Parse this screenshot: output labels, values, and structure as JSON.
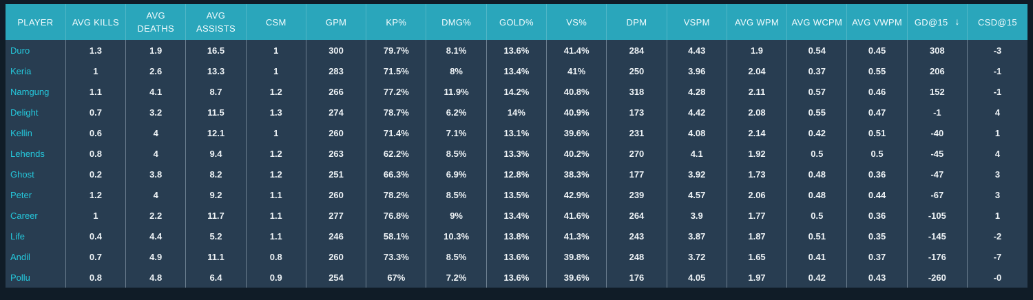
{
  "table": {
    "colors": {
      "header_bg": "#2aa6bb",
      "row_bg": "#283d51",
      "frame_bg": "#101c27",
      "player_text": "#25c8dc",
      "value_text": "#eef3f6"
    },
    "columns": [
      {
        "label": "PLAYER"
      },
      {
        "label": "AVG KILLS"
      },
      {
        "label": "AVG DEATHS"
      },
      {
        "label": "AVG ASSISTS"
      },
      {
        "label": "CSM"
      },
      {
        "label": "GPM"
      },
      {
        "label": "KP%"
      },
      {
        "label": "DMG%"
      },
      {
        "label": "GOLD%"
      },
      {
        "label": "VS%"
      },
      {
        "label": "DPM"
      },
      {
        "label": "VSPM"
      },
      {
        "label": "AVG WPM"
      },
      {
        "label": "AVG WCPM"
      },
      {
        "label": "AVG VWPM"
      },
      {
        "label": "GD@15"
      },
      {
        "label": "CSD@15"
      }
    ],
    "sort": {
      "column": "GD@15",
      "direction": "descending",
      "icon": "↓"
    },
    "rows": [
      {
        "player": "Duro",
        "stats": [
          "1.3",
          "1.9",
          "16.5",
          "1",
          "300",
          "79.7%",
          "8.1%",
          "13.6%",
          "41.4%",
          "284",
          "4.43",
          "1.9",
          "0.54",
          "0.45",
          "308",
          "-3"
        ]
      },
      {
        "player": "Keria",
        "stats": [
          "1",
          "2.6",
          "13.3",
          "1",
          "283",
          "71.5%",
          "8%",
          "13.4%",
          "41%",
          "250",
          "3.96",
          "2.04",
          "0.37",
          "0.55",
          "206",
          "-1"
        ]
      },
      {
        "player": "Namgung",
        "stats": [
          "1.1",
          "4.1",
          "8.7",
          "1.2",
          "266",
          "77.2%",
          "11.9%",
          "14.2%",
          "40.8%",
          "318",
          "4.28",
          "2.11",
          "0.57",
          "0.46",
          "152",
          "-1"
        ]
      },
      {
        "player": "Delight",
        "stats": [
          "0.7",
          "3.2",
          "11.5",
          "1.3",
          "274",
          "78.7%",
          "6.2%",
          "14%",
          "40.9%",
          "173",
          "4.42",
          "2.08",
          "0.55",
          "0.47",
          "-1",
          "4"
        ]
      },
      {
        "player": "Kellin",
        "stats": [
          "0.6",
          "4",
          "12.1",
          "1",
          "260",
          "71.4%",
          "7.1%",
          "13.1%",
          "39.6%",
          "231",
          "4.08",
          "2.14",
          "0.42",
          "0.51",
          "-40",
          "1"
        ]
      },
      {
        "player": "Lehends",
        "stats": [
          "0.8",
          "4",
          "9.4",
          "1.2",
          "263",
          "62.2%",
          "8.5%",
          "13.3%",
          "40.2%",
          "270",
          "4.1",
          "1.92",
          "0.5",
          "0.5",
          "-45",
          "4"
        ]
      },
      {
        "player": "Ghost",
        "stats": [
          "0.2",
          "3.8",
          "8.2",
          "1.2",
          "251",
          "66.3%",
          "6.9%",
          "12.8%",
          "38.3%",
          "177",
          "3.92",
          "1.73",
          "0.48",
          "0.36",
          "-47",
          "3"
        ]
      },
      {
        "player": "Peter",
        "stats": [
          "1.2",
          "4",
          "9.2",
          "1.1",
          "260",
          "78.2%",
          "8.5%",
          "13.5%",
          "42.9%",
          "239",
          "4.57",
          "2.06",
          "0.48",
          "0.44",
          "-67",
          "3"
        ]
      },
      {
        "player": "Career",
        "stats": [
          "1",
          "2.2",
          "11.7",
          "1.1",
          "277",
          "76.8%",
          "9%",
          "13.4%",
          "41.6%",
          "264",
          "3.9",
          "1.77",
          "0.5",
          "0.36",
          "-105",
          "1"
        ]
      },
      {
        "player": "Life",
        "stats": [
          "0.4",
          "4.4",
          "5.2",
          "1.1",
          "246",
          "58.1%",
          "10.3%",
          "13.8%",
          "41.3%",
          "243",
          "3.87",
          "1.87",
          "0.51",
          "0.35",
          "-145",
          "-2"
        ]
      },
      {
        "player": "Andil",
        "stats": [
          "0.7",
          "4.9",
          "11.1",
          "0.8",
          "260",
          "73.3%",
          "8.5%",
          "13.6%",
          "39.8%",
          "248",
          "3.72",
          "1.65",
          "0.41",
          "0.37",
          "-176",
          "-7"
        ]
      },
      {
        "player": "Pollu",
        "stats": [
          "0.8",
          "4.8",
          "6.4",
          "0.9",
          "254",
          "67%",
          "7.2%",
          "13.6%",
          "39.6%",
          "176",
          "4.05",
          "1.97",
          "0.42",
          "0.43",
          "-260",
          "-0"
        ]
      }
    ]
  }
}
